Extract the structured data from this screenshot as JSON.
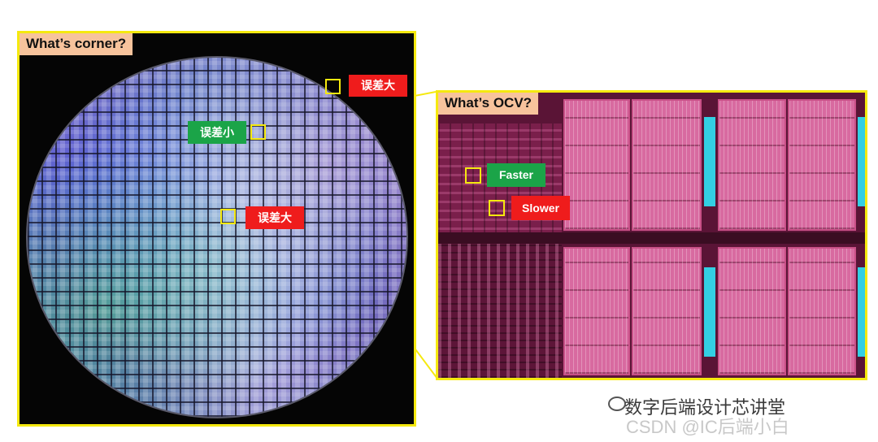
{
  "wafer_panel": {
    "title": "What’s corner?",
    "labels": [
      {
        "text": "误差大",
        "color": "#ef1c1c"
      },
      {
        "text": "误差小",
        "color": "#1ba448"
      },
      {
        "text": "误差大",
        "color": "#ef1c1c"
      }
    ]
  },
  "die_panel": {
    "title": "What’s OCV?",
    "labels": [
      {
        "text": "Faster",
        "color": "#1ba448"
      },
      {
        "text": "Slower",
        "color": "#ef1c1c"
      }
    ]
  },
  "watermark": {
    "line1": "数字后端设计芯讲堂",
    "line2": "CSDN @IC后端小白"
  },
  "colors": {
    "frame": "#f5e90f",
    "title_bg": "#f7c39c"
  }
}
